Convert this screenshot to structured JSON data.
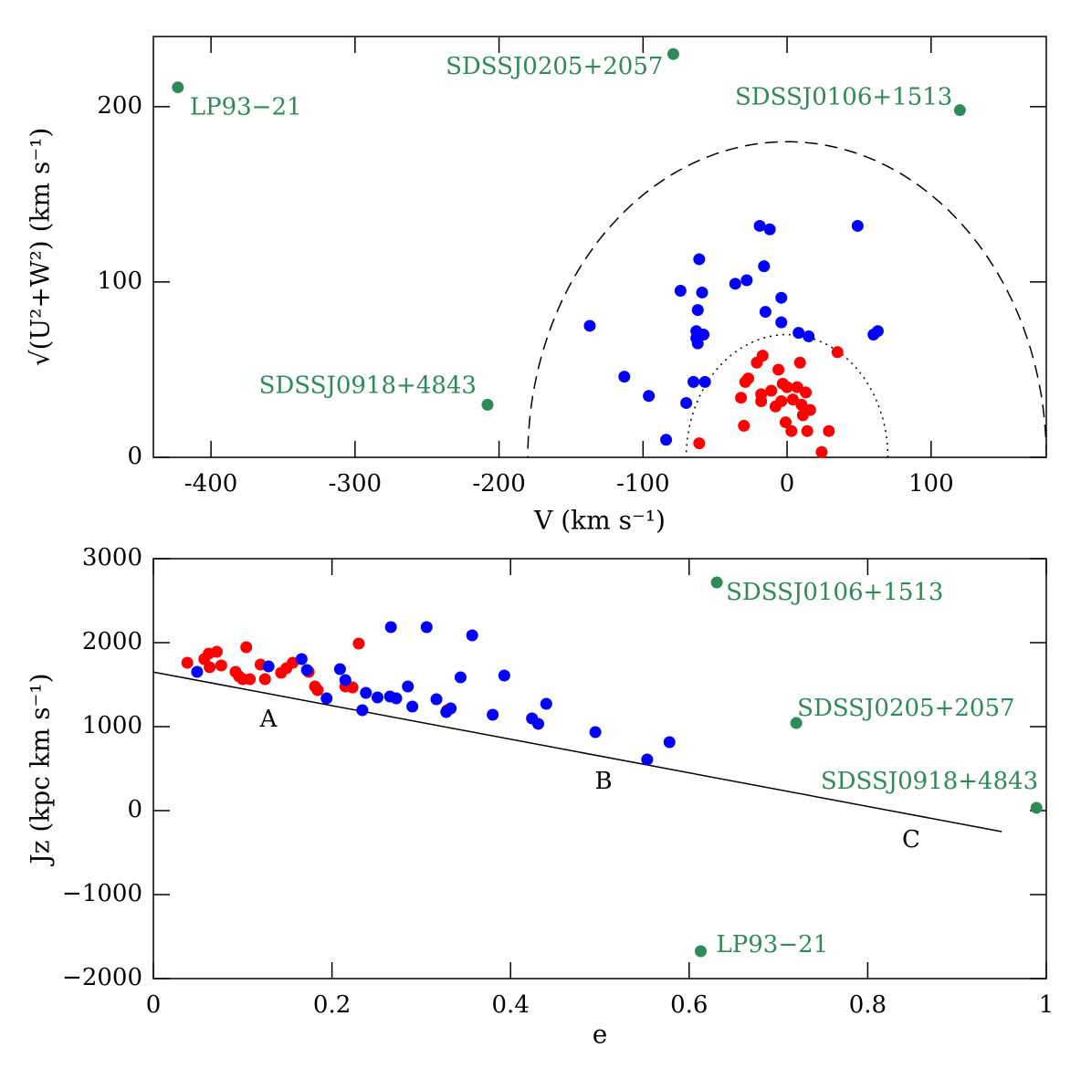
{
  "chart_data": [
    {
      "type": "scatter",
      "x_label": "V (km s⁻¹)",
      "y_label": "√(U²+W²)  (km s⁻¹)",
      "xlim": [
        -440,
        180
      ],
      "ylim": [
        0,
        240
      ],
      "xticks": [
        -400,
        -300,
        -200,
        -100,
        0,
        100
      ],
      "yticks": [
        0,
        100,
        200
      ],
      "curves": [
        {
          "style": "dashed",
          "radius": 180
        },
        {
          "style": "dotted",
          "radius": 70
        }
      ],
      "series": [
        {
          "color": "#0000ff",
          "x": [
            -137,
            -113,
            -96,
            -84,
            -70,
            -65,
            -57,
            -62,
            -61,
            -59,
            -74,
            -36,
            -28,
            -16,
            -19,
            -12,
            -4,
            -4,
            -15,
            8,
            15,
            49,
            60,
            63,
            -63,
            -63,
            -58,
            -62
          ],
          "y": [
            75,
            46,
            35,
            10,
            31,
            43,
            43,
            84,
            113,
            94,
            95,
            99,
            101,
            109,
            132,
            130,
            91,
            77,
            83,
            71,
            69,
            132,
            70,
            72,
            68,
            72,
            70,
            65
          ]
        },
        {
          "color": "#ff0000",
          "x": [
            -61,
            -32,
            -30,
            -29,
            -27,
            -21,
            -17,
            -18,
            -18,
            -11,
            -6,
            -4,
            -3,
            0,
            -1,
            4,
            3,
            9,
            10,
            7,
            11,
            13,
            14,
            16,
            29,
            35,
            24,
            -8
          ],
          "y": [
            8,
            34,
            18,
            43,
            45,
            54,
            58,
            32,
            36,
            38,
            50,
            32,
            42,
            40,
            20,
            33,
            15,
            54,
            30,
            40,
            24,
            37,
            15,
            27,
            15,
            60,
            3,
            29
          ]
        },
        {
          "color": "#2e8b57",
          "x": [
            -423,
            -79,
            120,
            -208
          ],
          "y": [
            211,
            230,
            198,
            30
          ],
          "labels": [
            "LP93−21",
            "SDSSJ0205+2057",
            "SDSSJ0106+1513",
            "SDSSJ0918+4843"
          ]
        }
      ]
    },
    {
      "type": "scatter",
      "x_label": "e",
      "y_label": "Jz (kpc km s⁻¹)",
      "xlim": [
        0,
        1
      ],
      "ylim": [
        -2000,
        3000
      ],
      "xticks": [
        0,
        0.2,
        0.4,
        0.6,
        0.8,
        1
      ],
      "yticks": [
        {
          "value": -2000,
          "label": "−2000"
        },
        {
          "value": -1000,
          "label": "−1000"
        },
        0,
        1000,
        2000,
        3000
      ],
      "fit": {
        "x": [
          0,
          0.95
        ],
        "y": [
          1650,
          -250
        ]
      },
      "annotations": [
        "A",
        "B",
        "C"
      ],
      "series": [
        {
          "color": "#ff0000",
          "x": [
            0.038,
            0.057,
            0.062,
            0.063,
            0.071,
            0.076,
            0.092,
            0.096,
            0.1,
            0.104,
            0.108,
            0.12,
            0.125,
            0.143,
            0.149,
            0.156,
            0.174,
            0.181,
            0.184,
            0.215,
            0.223,
            0.23,
            0.329
          ],
          "y": [
            1761,
            1804,
            1870,
            1707,
            1891,
            1728,
            1652,
            1598,
            1565,
            1946,
            1565,
            1739,
            1565,
            1641,
            1696,
            1761,
            1652,
            1478,
            1435,
            1478,
            1467,
            1989,
            1196
          ]
        },
        {
          "color": "#0000ff",
          "x": [
            0.049,
            0.129,
            0.166,
            0.172,
            0.194,
            0.209,
            0.215,
            0.234,
            0.238,
            0.251,
            0.265,
            0.272,
            0.266,
            0.285,
            0.29,
            0.306,
            0.317,
            0.328,
            0.333,
            0.344,
            0.357,
            0.38,
            0.393,
            0.424,
            0.431,
            0.44,
            0.495,
            0.553,
            0.578
          ],
          "y": [
            1652,
            1717,
            1804,
            1674,
            1337,
            1685,
            1554,
            1196,
            1402,
            1348,
            1359,
            1337,
            2185,
            1478,
            1239,
            2185,
            1326,
            1174,
            1217,
            1587,
            2087,
            1141,
            1609,
            1098,
            1033,
            1272,
            935,
            609,
            815
          ]
        },
        {
          "color": "#2e8b57",
          "x": [
            0.631,
            0.72,
            0.989,
            0.613
          ],
          "y": [
            2717,
            1043,
            33,
            -1674
          ],
          "labels": [
            "SDSSJ0106+1513",
            "SDSSJ0205+2057",
            "SDSSJ0918+4843",
            "LP93−21"
          ]
        }
      ]
    }
  ]
}
